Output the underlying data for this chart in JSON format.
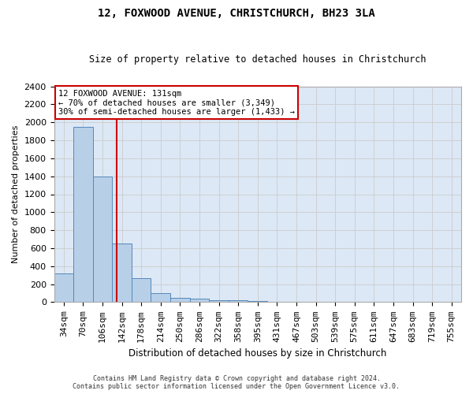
{
  "title": "12, FOXWOOD AVENUE, CHRISTCHURCH, BH23 3LA",
  "subtitle": "Size of property relative to detached houses in Christchurch",
  "xlabel": "Distribution of detached houses by size in Christchurch",
  "ylabel": "Number of detached properties",
  "footer_line1": "Contains HM Land Registry data © Crown copyright and database right 2024.",
  "footer_line2": "Contains public sector information licensed under the Open Government Licence v3.0.",
  "bin_labels": [
    "34sqm",
    "70sqm",
    "106sqm",
    "142sqm",
    "178sqm",
    "214sqm",
    "250sqm",
    "286sqm",
    "322sqm",
    "358sqm",
    "395sqm",
    "431sqm",
    "467sqm",
    "503sqm",
    "539sqm",
    "575sqm",
    "611sqm",
    "647sqm",
    "683sqm",
    "719sqm",
    "755sqm"
  ],
  "bar_heights": [
    320,
    1950,
    1400,
    650,
    265,
    100,
    50,
    35,
    25,
    20,
    15,
    0,
    0,
    0,
    0,
    0,
    0,
    0,
    0,
    0,
    0
  ],
  "bar_color": "#b8cfe8",
  "bar_edge_color": "#5588bb",
  "property_line_x": 2.75,
  "property_line_label": "12 FOXWOOD AVENUE: 131sqm",
  "annotation_line1": "← 70% of detached houses are smaller (3,349)",
  "annotation_line2": "30% of semi-detached houses are larger (1,433) →",
  "annotation_box_color": "#cc0000",
  "ylim": [
    0,
    2400
  ],
  "yticks": [
    0,
    200,
    400,
    600,
    800,
    1000,
    1200,
    1400,
    1600,
    1800,
    2000,
    2200,
    2400
  ],
  "grid_color": "#cccccc",
  "bg_color": "#dce8f5",
  "fig_bg_color": "#ffffff",
  "title_fontsize": 10,
  "subtitle_fontsize": 8.5,
  "xlabel_fontsize": 8.5,
  "ylabel_fontsize": 8,
  "tick_fontsize": 8,
  "annotation_fontsize": 7.5,
  "footer_fontsize": 6
}
